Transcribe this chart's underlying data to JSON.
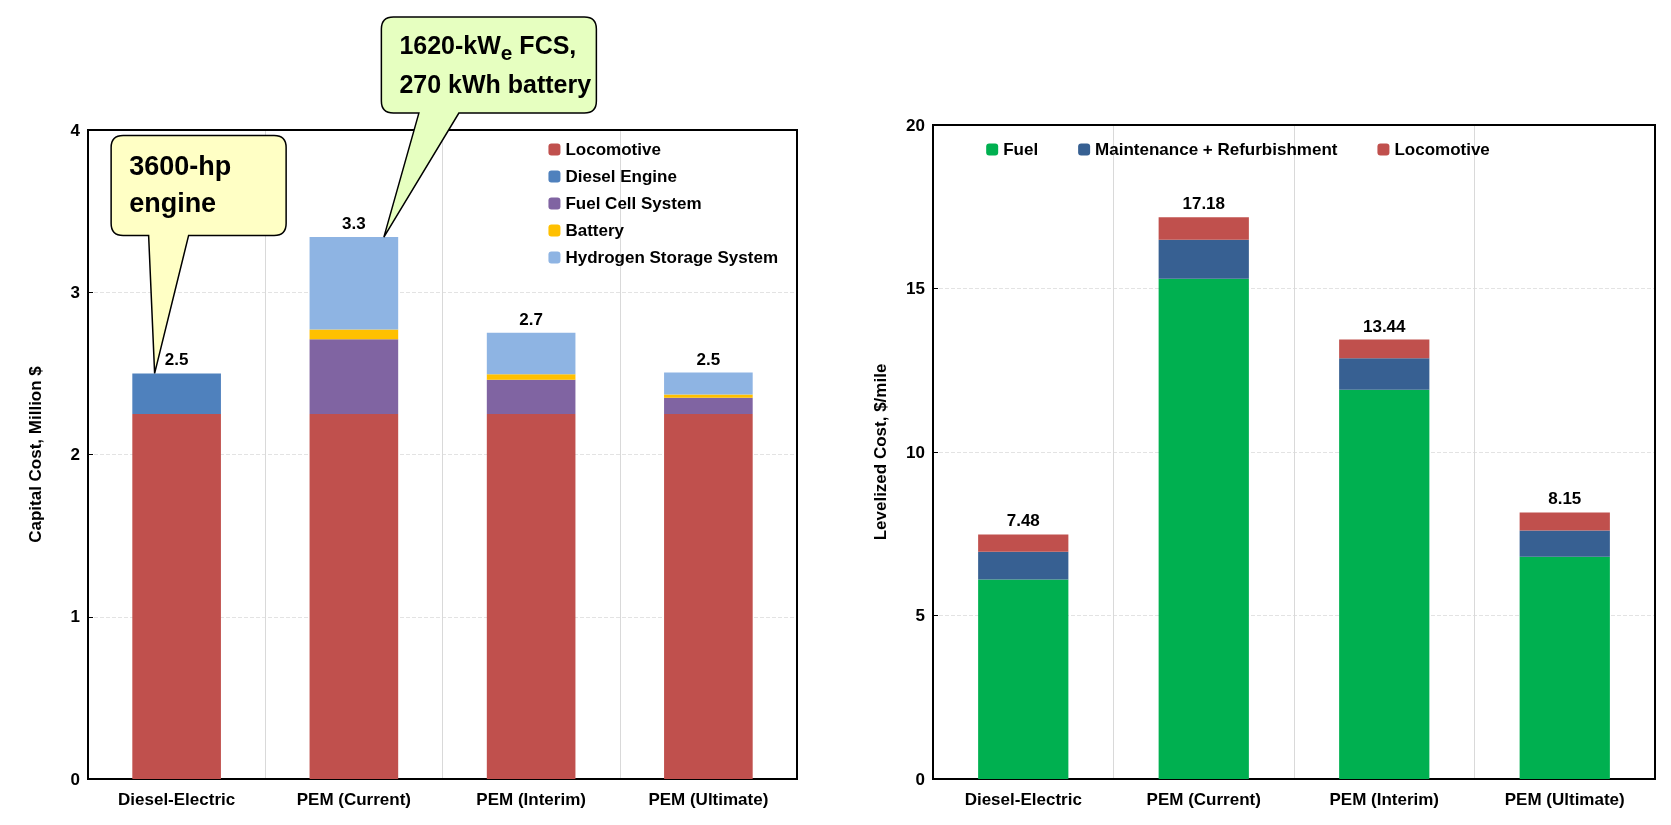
{
  "chart_data": [
    {
      "type": "bar",
      "ylabel": "Capital Cost, Million $",
      "categories": [
        "Diesel-Electric",
        "PEM (Current)",
        "PEM (Interim)",
        "PEM (Ultimate)"
      ],
      "stacked": true,
      "series": [
        {
          "name": "Locomotive",
          "color": "#c0504d",
          "values": [
            2.25,
            2.25,
            2.25,
            2.25
          ]
        },
        {
          "name": "Diesel Engine",
          "color": "#4f81bd",
          "values": [
            0.25,
            null,
            null,
            null
          ]
        },
        {
          "name": "Fuel Cell System",
          "color": "#8064a2",
          "values": [
            null,
            0.46,
            0.21,
            0.1
          ]
        },
        {
          "name": "Battery",
          "color": "#ffc000",
          "values": [
            null,
            0.06,
            0.035,
            0.02
          ]
        },
        {
          "name": "Hydrogen Storage System",
          "color": "#8eb4e3",
          "values": [
            null,
            0.57,
            0.255,
            0.135
          ]
        }
      ],
      "totals": [
        "2.5",
        "3.3",
        "2.7",
        "2.5"
      ],
      "ylim": [
        0,
        4
      ],
      "yticks": [
        0,
        1,
        2,
        3,
        4
      ],
      "grid": true,
      "legend": "top right",
      "annotations": [
        "3600-hp\nengine",
        "1620-kW$_{e}$ FCS,\n270 kWh battery"
      ]
    },
    {
      "type": "bar",
      "ylabel": "Levelized Cost, $/mile",
      "categories": [
        "Diesel-Electric",
        "PEM (Current)",
        "PEM (Interim)",
        "PEM (Ultimate)"
      ],
      "stacked": true,
      "series": [
        {
          "name": "Fuel",
          "color": "#00b050",
          "values": [
            6.1,
            15.3,
            11.9,
            6.8
          ]
        },
        {
          "name": "Maintenance + Refurbishment",
          "color": "#376092",
          "values": [
            0.85,
            1.19,
            0.97,
            0.8
          ]
        },
        {
          "name": "Locomotive",
          "color": "#c0504d",
          "values": [
            0.53,
            0.69,
            0.57,
            0.55
          ]
        }
      ],
      "totals": [
        "7.48",
        "17.18",
        "13.44",
        "8.15"
      ],
      "ylim": [
        0,
        20
      ],
      "yticks": [
        0,
        5,
        10,
        15,
        20
      ],
      "grid": true,
      "legend": "top"
    }
  ]
}
